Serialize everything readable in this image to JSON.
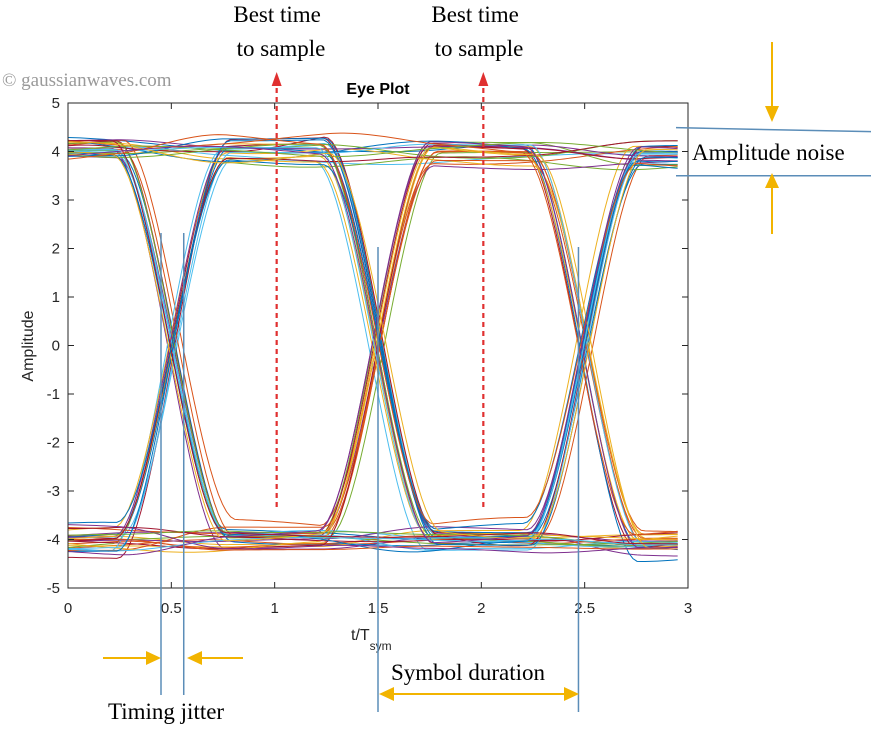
{
  "watermark": "© gaussianwaves.com",
  "chart_data": {
    "type": "line",
    "title": "Eye Plot",
    "xlabel_main": "t/T",
    "xlabel_sub": "sym",
    "ylabel": "Amplitude",
    "xlim": [
      0,
      3
    ],
    "ylim": [
      -5,
      5
    ],
    "xticks": [
      "0",
      "0.5",
      "1",
      "1.5",
      "2",
      "2.5",
      "3"
    ],
    "yticks": [
      "-5",
      "-4",
      "-3",
      "-2",
      "-1",
      "0",
      "1",
      "2",
      "3",
      "4",
      "5"
    ],
    "grid": false,
    "levels": [
      4,
      -4
    ],
    "crossings": [
      0.5,
      1.5,
      2.5
    ],
    "trace_span": [
      0,
      2.95
    ],
    "n_traces": 60,
    "colors": [
      "#0072BD",
      "#D95319",
      "#EDB120",
      "#7E2F8E",
      "#77AC30",
      "#4DBEEE",
      "#A2142F"
    ],
    "annotations": {
      "best_time_1": [
        "Best time",
        "to sample"
      ],
      "best_time_2": [
        "Best time",
        "to sample"
      ],
      "amplitude_noise": "Amplitude noise",
      "timing_jitter": "Timing jitter",
      "symbol_duration": "Symbol duration"
    },
    "sampling_times": [
      1,
      2
    ],
    "jitter_range": [
      0.45,
      0.56
    ],
    "symbol_duration_range": [
      1.5,
      2.47
    ],
    "noise_band": [
      3.5,
      4.45
    ],
    "annotation_colors": {
      "marker": "#E03030",
      "guide": "#5B8DB8",
      "arrow": "#F2B400"
    }
  }
}
